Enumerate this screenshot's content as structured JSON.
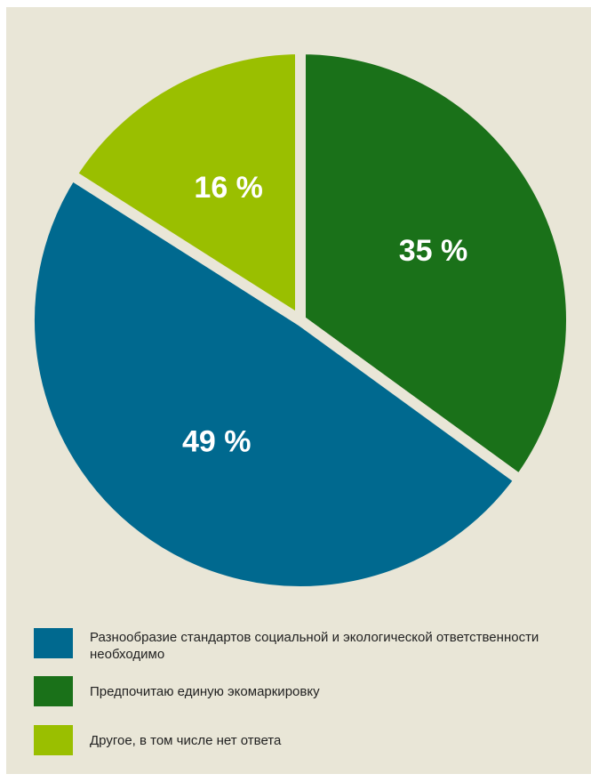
{
  "chart_data": {
    "type": "pie",
    "slices": [
      {
        "label": "Предпочитаю единую экомаркировку",
        "value": 35,
        "display": "35 %",
        "color": "#1a7119"
      },
      {
        "label": "Разнообразие стандартов социальной и экологической ответственности необходимо",
        "value": 49,
        "display": "49 %",
        "color": "#00698f"
      },
      {
        "label": "Другое, в том числе нет ответа",
        "value": 16,
        "display": "16 %",
        "color": "#9abf00"
      }
    ],
    "legend": [
      {
        "label": "Разнообразие стандартов социальной и экологической ответственности необходимо",
        "color": "#00698f"
      },
      {
        "label": "Предпочитаю единую экомаркировку",
        "color": "#1a7119"
      },
      {
        "label": "Другое, в том числе нет ответа",
        "color": "#9abf00"
      }
    ],
    "legend_position": "bottom-left",
    "background_color": "#e9e6d7",
    "separator_color": "#e9e6d7"
  }
}
